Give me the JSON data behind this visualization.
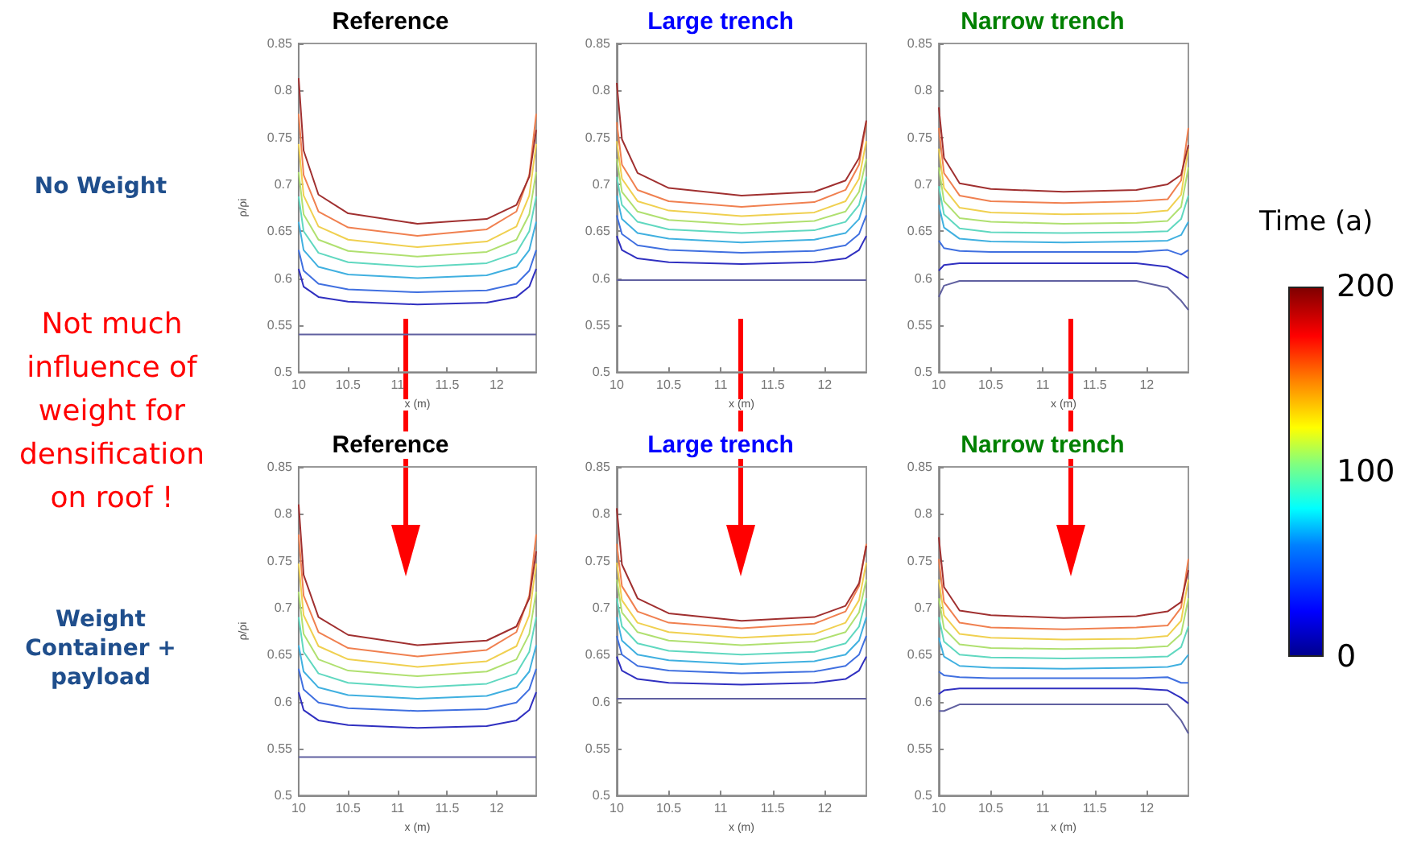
{
  "chart_data": [
    {
      "type": "line",
      "title": "Reference",
      "xlabel": "x (m)",
      "ylabel": "ρ/ρi",
      "annotations": [
        "No Weight",
        "Not much influence of weight for densification on roof !"
      ],
      "marker": "none",
      "line_style": "solid",
      "x": [
        10,
        10.05,
        10.2,
        10.5,
        11.2,
        11.9,
        12.2,
        12.33,
        12.4
      ],
      "xlim": [
        10,
        12.4
      ],
      "xticks": [
        10,
        10.5,
        11,
        11.5,
        12
      ],
      "ylim": [
        0.5,
        0.85
      ],
      "yticks": [
        0.5,
        0.55,
        0.6,
        0.65,
        0.7,
        0.75,
        0.8,
        0.85
      ],
      "series": [
        {
          "color": "#6060a0",
          "values": [
            0.54,
            0.54,
            0.54,
            0.54,
            0.54,
            0.54,
            0.54,
            0.54,
            0.54
          ]
        },
        {
          "color": "#3030c0",
          "values": [
            0.61,
            0.591,
            0.58,
            0.575,
            0.572,
            0.574,
            0.58,
            0.591,
            0.61
          ]
        },
        {
          "color": "#4070e0",
          "values": [
            0.63,
            0.608,
            0.594,
            0.588,
            0.585,
            0.587,
            0.594,
            0.608,
            0.63
          ]
        },
        {
          "color": "#40b0e0",
          "values": [
            0.66,
            0.63,
            0.612,
            0.604,
            0.6,
            0.603,
            0.612,
            0.63,
            0.66
          ]
        },
        {
          "color": "#60d8c0",
          "values": [
            0.687,
            0.65,
            0.627,
            0.617,
            0.612,
            0.616,
            0.627,
            0.65,
            0.687
          ]
        },
        {
          "color": "#b0e070",
          "values": [
            0.713,
            0.668,
            0.641,
            0.629,
            0.623,
            0.628,
            0.641,
            0.668,
            0.713
          ]
        },
        {
          "color": "#f0d050",
          "values": [
            0.743,
            0.688,
            0.655,
            0.641,
            0.633,
            0.639,
            0.655,
            0.688,
            0.743
          ]
        },
        {
          "color": "#f08050",
          "values": [
            0.775,
            0.71,
            0.671,
            0.654,
            0.645,
            0.652,
            0.671,
            0.71,
            0.775
          ]
        },
        {
          "color": "#a03030",
          "values": [
            0.813,
            0.736,
            0.689,
            0.669,
            0.658,
            0.663,
            0.678,
            0.708,
            0.758
          ]
        }
      ]
    },
    {
      "type": "line",
      "title": "Large trench",
      "xlabel": "x (m)",
      "marker": "none",
      "line_style": "solid",
      "x": [
        10,
        10.05,
        10.2,
        10.5,
        11.2,
        11.9,
        12.2,
        12.33,
        12.4
      ],
      "xlim": [
        10,
        12.4
      ],
      "xticks": [
        10,
        10.5,
        11,
        11.5,
        12
      ],
      "ylim": [
        0.5,
        0.85
      ],
      "yticks": [
        0.5,
        0.55,
        0.6,
        0.65,
        0.7,
        0.75,
        0.8,
        0.85
      ],
      "series": [
        {
          "color": "#6060a0",
          "values": [
            0.598,
            0.598,
            0.598,
            0.598,
            0.598,
            0.598,
            0.598,
            0.598,
            0.598
          ]
        },
        {
          "color": "#3030c0",
          "values": [
            0.645,
            0.63,
            0.621,
            0.617,
            0.615,
            0.617,
            0.621,
            0.63,
            0.645
          ]
        },
        {
          "color": "#4070e0",
          "values": [
            0.667,
            0.647,
            0.635,
            0.63,
            0.627,
            0.629,
            0.635,
            0.647,
            0.667
          ]
        },
        {
          "color": "#40b0e0",
          "values": [
            0.688,
            0.663,
            0.648,
            0.642,
            0.638,
            0.641,
            0.648,
            0.663,
            0.688
          ]
        },
        {
          "color": "#60d8c0",
          "values": [
            0.708,
            0.678,
            0.66,
            0.652,
            0.648,
            0.651,
            0.66,
            0.678,
            0.708
          ]
        },
        {
          "color": "#b0e070",
          "values": [
            0.727,
            0.692,
            0.671,
            0.662,
            0.657,
            0.661,
            0.671,
            0.692,
            0.727
          ]
        },
        {
          "color": "#f0d050",
          "values": [
            0.746,
            0.706,
            0.682,
            0.672,
            0.666,
            0.67,
            0.682,
            0.706,
            0.746
          ]
        },
        {
          "color": "#f08050",
          "values": [
            0.766,
            0.721,
            0.694,
            0.682,
            0.676,
            0.681,
            0.694,
            0.721,
            0.766
          ]
        },
        {
          "color": "#a03030",
          "values": [
            0.808,
            0.748,
            0.712,
            0.696,
            0.688,
            0.692,
            0.704,
            0.728,
            0.768
          ]
        }
      ]
    },
    {
      "type": "line",
      "title": "Narrow trench",
      "xlabel": "x (m)",
      "clabel": "Time (a)",
      "clim": [
        0,
        200
      ],
      "cticks": [
        0,
        100,
        200
      ],
      "marker": "none",
      "line_style": "solid",
      "x": [
        10,
        10.05,
        10.2,
        10.5,
        11.2,
        11.9,
        12.2,
        12.33,
        12.4
      ],
      "xlim": [
        10,
        12.4
      ],
      "xticks": [
        10,
        10.5,
        11,
        11.5,
        12
      ],
      "ylim": [
        0.5,
        0.85
      ],
      "yticks": [
        0.5,
        0.55,
        0.6,
        0.65,
        0.7,
        0.75,
        0.8,
        0.85
      ],
      "series": [
        {
          "color": "#6060a0",
          "values": [
            0.58,
            0.592,
            0.597,
            0.597,
            0.597,
            0.597,
            0.59,
            0.576,
            0.566
          ]
        },
        {
          "color": "#3030c0",
          "values": [
            0.608,
            0.614,
            0.616,
            0.616,
            0.616,
            0.616,
            0.612,
            0.605,
            0.6
          ]
        },
        {
          "color": "#4070e0",
          "values": [
            0.64,
            0.632,
            0.629,
            0.628,
            0.628,
            0.628,
            0.63,
            0.625,
            0.63
          ]
        },
        {
          "color": "#40b0e0",
          "values": [
            0.678,
            0.654,
            0.642,
            0.639,
            0.638,
            0.639,
            0.64,
            0.646,
            0.66
          ]
        },
        {
          "color": "#60d8c0",
          "values": [
            0.698,
            0.668,
            0.653,
            0.649,
            0.648,
            0.649,
            0.65,
            0.663,
            0.688
          ]
        },
        {
          "color": "#b0e070",
          "values": [
            0.718,
            0.682,
            0.664,
            0.66,
            0.658,
            0.659,
            0.661,
            0.676,
            0.718
          ]
        },
        {
          "color": "#f0d050",
          "values": [
            0.738,
            0.696,
            0.675,
            0.67,
            0.668,
            0.669,
            0.672,
            0.689,
            0.738
          ]
        },
        {
          "color": "#f08050",
          "values": [
            0.76,
            0.712,
            0.688,
            0.682,
            0.68,
            0.682,
            0.684,
            0.704,
            0.76
          ]
        },
        {
          "color": "#a03030",
          "values": [
            0.782,
            0.728,
            0.701,
            0.695,
            0.692,
            0.694,
            0.7,
            0.71,
            0.742
          ]
        }
      ]
    },
    {
      "type": "line",
      "title": "Reference",
      "xlabel": "x (m)",
      "ylabel": "ρ/ρi",
      "annotations": [
        "Weight Container + payload"
      ],
      "marker": "none",
      "line_style": "solid",
      "x": [
        10,
        10.05,
        10.2,
        10.5,
        11.2,
        11.9,
        12.2,
        12.33,
        12.4
      ],
      "xlim": [
        10,
        12.4
      ],
      "xticks": [
        10,
        10.5,
        11,
        11.5,
        12
      ],
      "ylim": [
        0.5,
        0.85
      ],
      "yticks": [
        0.5,
        0.55,
        0.6,
        0.65,
        0.7,
        0.75,
        0.8,
        0.85
      ],
      "series": [
        {
          "color": "#6060a0",
          "values": [
            0.541,
            0.541,
            0.541,
            0.541,
            0.541,
            0.541,
            0.541,
            0.541,
            0.541
          ]
        },
        {
          "color": "#3030c0",
          "values": [
            0.61,
            0.591,
            0.58,
            0.575,
            0.572,
            0.574,
            0.58,
            0.591,
            0.61
          ]
        },
        {
          "color": "#4070e0",
          "values": [
            0.635,
            0.613,
            0.599,
            0.593,
            0.59,
            0.592,
            0.599,
            0.613,
            0.635
          ]
        },
        {
          "color": "#40b0e0",
          "values": [
            0.66,
            0.632,
            0.615,
            0.607,
            0.603,
            0.606,
            0.615,
            0.632,
            0.66
          ]
        },
        {
          "color": "#60d8c0",
          "values": [
            0.69,
            0.653,
            0.63,
            0.62,
            0.615,
            0.619,
            0.63,
            0.653,
            0.69
          ]
        },
        {
          "color": "#b0e070",
          "values": [
            0.717,
            0.672,
            0.645,
            0.633,
            0.627,
            0.632,
            0.645,
            0.672,
            0.717
          ]
        },
        {
          "color": "#f0d050",
          "values": [
            0.747,
            0.692,
            0.659,
            0.645,
            0.637,
            0.643,
            0.659,
            0.692,
            0.747
          ]
        },
        {
          "color": "#f08050",
          "values": [
            0.778,
            0.713,
            0.674,
            0.657,
            0.648,
            0.655,
            0.674,
            0.713,
            0.778
          ]
        },
        {
          "color": "#a03030",
          "values": [
            0.81,
            0.735,
            0.69,
            0.671,
            0.66,
            0.665,
            0.68,
            0.71,
            0.76
          ]
        }
      ]
    },
    {
      "type": "line",
      "title": "Large trench",
      "xlabel": "x (m)",
      "marker": "none",
      "line_style": "solid",
      "x": [
        10,
        10.05,
        10.2,
        10.5,
        11.2,
        11.9,
        12.2,
        12.33,
        12.4
      ],
      "xlim": [
        10,
        12.4
      ],
      "xticks": [
        10,
        10.5,
        11,
        11.5,
        12
      ],
      "ylim": [
        0.5,
        0.85
      ],
      "yticks": [
        0.5,
        0.55,
        0.6,
        0.65,
        0.7,
        0.75,
        0.8,
        0.85
      ],
      "series": [
        {
          "color": "#6060a0",
          "values": [
            0.603,
            0.603,
            0.603,
            0.603,
            0.603,
            0.603,
            0.603,
            0.603,
            0.603
          ]
        },
        {
          "color": "#3030c0",
          "values": [
            0.648,
            0.633,
            0.624,
            0.62,
            0.618,
            0.62,
            0.624,
            0.633,
            0.648
          ]
        },
        {
          "color": "#4070e0",
          "values": [
            0.67,
            0.65,
            0.638,
            0.633,
            0.63,
            0.632,
            0.638,
            0.65,
            0.67
          ]
        },
        {
          "color": "#40b0e0",
          "values": [
            0.69,
            0.665,
            0.65,
            0.644,
            0.64,
            0.643,
            0.65,
            0.665,
            0.69
          ]
        },
        {
          "color": "#60d8c0",
          "values": [
            0.71,
            0.68,
            0.662,
            0.654,
            0.65,
            0.653,
            0.662,
            0.68,
            0.71
          ]
        },
        {
          "color": "#b0e070",
          "values": [
            0.73,
            0.695,
            0.674,
            0.665,
            0.66,
            0.664,
            0.674,
            0.695,
            0.73
          ]
        },
        {
          "color": "#f0d050",
          "values": [
            0.748,
            0.708,
            0.684,
            0.674,
            0.668,
            0.672,
            0.684,
            0.708,
            0.748
          ]
        },
        {
          "color": "#f08050",
          "values": [
            0.768,
            0.723,
            0.696,
            0.684,
            0.678,
            0.683,
            0.696,
            0.723,
            0.768
          ]
        },
        {
          "color": "#a03030",
          "values": [
            0.806,
            0.746,
            0.71,
            0.694,
            0.686,
            0.69,
            0.702,
            0.726,
            0.766
          ]
        }
      ]
    },
    {
      "type": "line",
      "title": "Narrow trench",
      "xlabel": "x (m)",
      "marker": "none",
      "line_style": "solid",
      "x": [
        10,
        10.05,
        10.2,
        10.5,
        11.2,
        11.9,
        12.2,
        12.33,
        12.4
      ],
      "xlim": [
        10,
        12.4
      ],
      "xticks": [
        10,
        10.5,
        11,
        11.5,
        12
      ],
      "ylim": [
        0.5,
        0.85
      ],
      "yticks": [
        0.5,
        0.55,
        0.6,
        0.65,
        0.7,
        0.75,
        0.8,
        0.85
      ],
      "series": [
        {
          "color": "#6060a0",
          "values": [
            0.59,
            0.59,
            0.597,
            0.597,
            0.597,
            0.597,
            0.597,
            0.58,
            0.566
          ]
        },
        {
          "color": "#3030c0",
          "values": [
            0.608,
            0.612,
            0.614,
            0.614,
            0.614,
            0.614,
            0.612,
            0.604,
            0.598
          ]
        },
        {
          "color": "#4070e0",
          "values": [
            0.632,
            0.628,
            0.626,
            0.625,
            0.625,
            0.625,
            0.626,
            0.62,
            0.62
          ]
        },
        {
          "color": "#40b0e0",
          "values": [
            0.668,
            0.648,
            0.638,
            0.636,
            0.635,
            0.636,
            0.637,
            0.64,
            0.65
          ]
        },
        {
          "color": "#60d8c0",
          "values": [
            0.69,
            0.664,
            0.65,
            0.647,
            0.646,
            0.647,
            0.648,
            0.658,
            0.68
          ]
        },
        {
          "color": "#b0e070",
          "values": [
            0.71,
            0.678,
            0.661,
            0.657,
            0.656,
            0.657,
            0.659,
            0.672,
            0.71
          ]
        },
        {
          "color": "#f0d050",
          "values": [
            0.73,
            0.692,
            0.672,
            0.668,
            0.666,
            0.667,
            0.67,
            0.686,
            0.73
          ]
        },
        {
          "color": "#f08050",
          "values": [
            0.752,
            0.706,
            0.684,
            0.679,
            0.677,
            0.679,
            0.681,
            0.7,
            0.752
          ]
        },
        {
          "color": "#a03030",
          "values": [
            0.775,
            0.722,
            0.697,
            0.692,
            0.689,
            0.691,
            0.696,
            0.706,
            0.74
          ]
        }
      ]
    }
  ]
}
